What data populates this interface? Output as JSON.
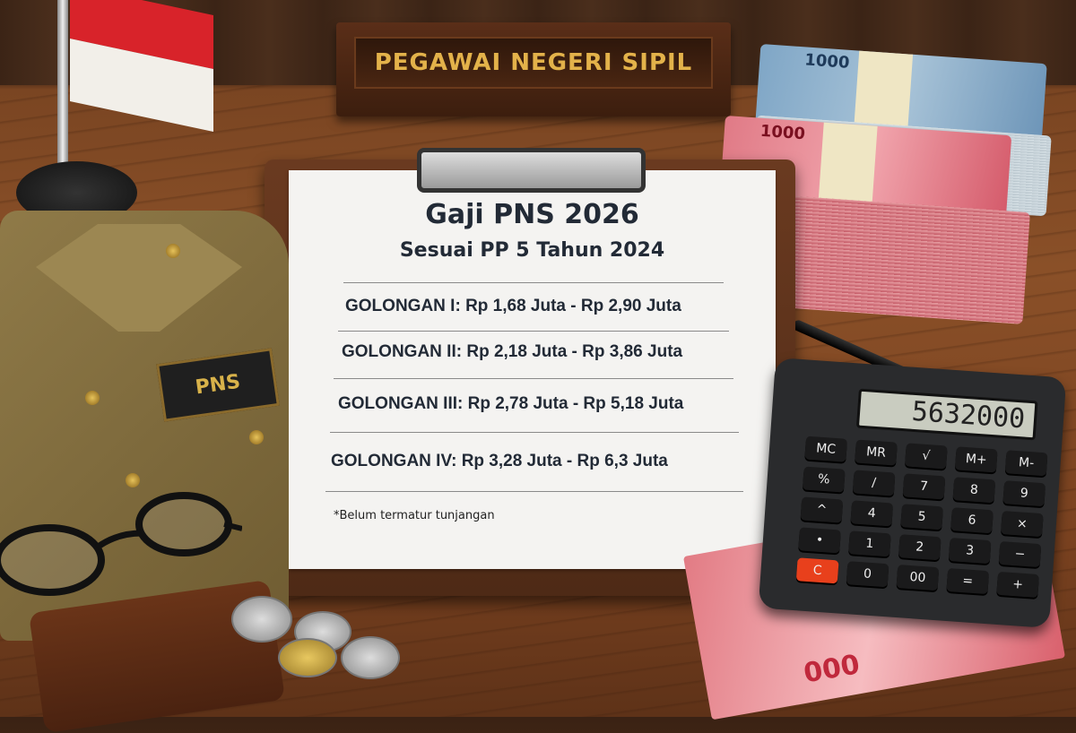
{
  "nameplate": {
    "text": "PEGAWAI NEGERI SIPIL"
  },
  "document": {
    "title": "Gaji PNS 2026",
    "subtitle": "Sesuai PP 5 Tahun 2024",
    "rows": [
      {
        "label": "GOLONGAN I:",
        "range": "Rp 1,68 Juta - Rp 2,90 Juta"
      },
      {
        "label": "GOLONGAN II:",
        "range": "Rp 2,18 Juta - Rp 3,86 Juta"
      },
      {
        "label": "GOLONGAN III:",
        "range": "Rp 2,78 Juta - Rp 5,18 Juta"
      },
      {
        "label": "GOLONGAN IV:",
        "range": "Rp 3,28 Juta - Rp 6,3 Juta"
      }
    ],
    "footnote": "*Belum termatur tunjangan"
  },
  "uniform": {
    "badge": "PNS"
  },
  "calculator": {
    "display": "5632000",
    "keys": [
      "MC",
      "MR",
      "√",
      "M+",
      "M-",
      "%",
      "/",
      "7",
      "8",
      "9",
      "^",
      "4",
      "5",
      "6",
      "×",
      "•",
      "1",
      "2",
      "3",
      "−",
      "C",
      "0",
      "00",
      "=",
      "+"
    ],
    "clear_color": "#e8401c"
  },
  "banknotes": {
    "blue_label": "1000",
    "red_label": "1000",
    "loose_label": "000"
  },
  "colors": {
    "wood": "#7a4522",
    "plate_text": "#e3b24a",
    "paper": "#f4f3f1",
    "text": "#222a36"
  }
}
